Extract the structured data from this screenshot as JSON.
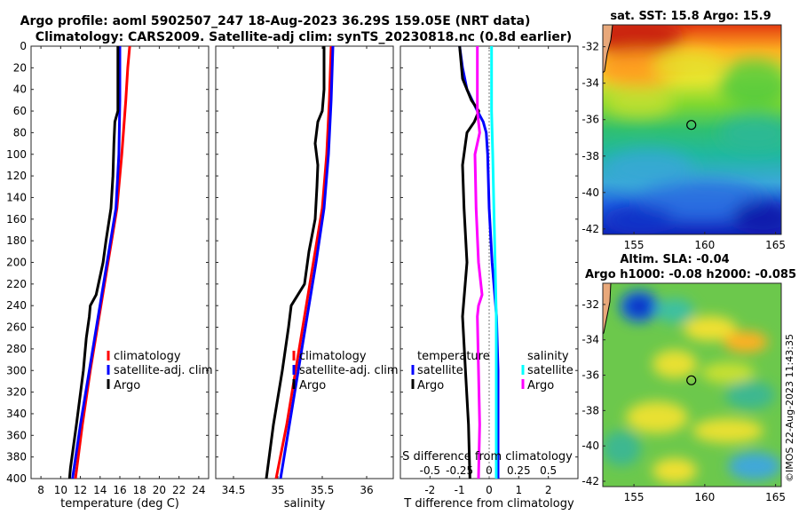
{
  "title": {
    "line1": "Argo profile: aoml 5902507_247 18-Aug-2023 36.29S 159.05E (NRT data)",
    "line2": "Climatology: CARS2009. Satellite-adj clim: synTS_20230818.nc (0.8d earlier)"
  },
  "map1_title": "sat. SST: 15.8 Argo: 15.9",
  "map2_title_line1": "Altim. SLA: -0.04",
  "map2_title_line2": "Argo h1000: -0.08 h2000: -0.085",
  "credit": "©IMOS 22-Aug-2023 11:43:35",
  "colors": {
    "climatology": "#ff0000",
    "satellite": "#0000ff",
    "argo": "#000000",
    "sal_satellite": "#00ffff",
    "sal_argo": "#ff00ff"
  },
  "chart_data": [
    {
      "type": "line",
      "name": "temperature-profile",
      "xlabel": "temperature (deg C)",
      "ylabel": "",
      "xlim": [
        7,
        25
      ],
      "ylim": [
        400,
        0
      ],
      "xticks": [
        8,
        10,
        12,
        14,
        16,
        18,
        20,
        22,
        24
      ],
      "yticks": [
        0,
        20,
        40,
        60,
        80,
        100,
        120,
        140,
        160,
        180,
        200,
        220,
        240,
        260,
        280,
        300,
        320,
        340,
        360,
        380,
        400
      ],
      "legend": [
        "climatology",
        "satellite-adj. clim",
        "Argo"
      ],
      "series": [
        {
          "name": "climatology",
          "depth": [
            0,
            20,
            50,
            100,
            150,
            200,
            250,
            300,
            350,
            400
          ],
          "values": [
            17.0,
            16.8,
            16.6,
            16.2,
            15.7,
            14.8,
            13.9,
            13.0,
            12.2,
            11.5
          ]
        },
        {
          "name": "satellite-adj. clim",
          "depth": [
            0,
            20,
            50,
            100,
            150,
            200,
            250,
            300,
            350,
            400
          ],
          "values": [
            16.0,
            16.0,
            16.0,
            15.9,
            15.6,
            14.7,
            13.8,
            12.9,
            12.0,
            11.2
          ]
        },
        {
          "name": "Argo",
          "depth": [
            0,
            30,
            60,
            70,
            90,
            120,
            150,
            180,
            200,
            230,
            240,
            250,
            270,
            300,
            350,
            390,
            400
          ],
          "values": [
            15.8,
            15.8,
            15.8,
            15.5,
            15.4,
            15.3,
            15.1,
            14.6,
            14.3,
            13.6,
            13.0,
            12.9,
            12.6,
            12.3,
            11.6,
            11.0,
            10.9
          ]
        }
      ]
    },
    {
      "type": "line",
      "name": "salinity-profile",
      "xlabel": "salinity",
      "ylabel": "",
      "xlim": [
        34.3,
        36.3
      ],
      "ylim": [
        400,
        0
      ],
      "xticks": [
        34.5,
        35,
        35.5,
        36
      ],
      "xticklabels": [
        "34.5",
        "35",
        "35.5",
        "36"
      ],
      "legend": [
        "climatology",
        "satellite-adj. clim",
        "Argo"
      ],
      "series": [
        {
          "name": "climatology",
          "depth": [
            0,
            50,
            100,
            150,
            200,
            250,
            300,
            350,
            400
          ],
          "values": [
            35.6,
            35.58,
            35.55,
            35.5,
            35.4,
            35.3,
            35.2,
            35.1,
            34.98
          ]
        },
        {
          "name": "satellite-adj. clim",
          "depth": [
            0,
            50,
            100,
            150,
            200,
            250,
            300,
            350,
            400
          ],
          "values": [
            35.62,
            35.6,
            35.57,
            35.52,
            35.43,
            35.33,
            35.23,
            35.13,
            35.03
          ]
        },
        {
          "name": "Argo",
          "depth": [
            0,
            40,
            60,
            70,
            90,
            110,
            130,
            160,
            190,
            220,
            240,
            260,
            300,
            350,
            400
          ],
          "values": [
            35.52,
            35.52,
            35.5,
            35.45,
            35.42,
            35.45,
            35.44,
            35.42,
            35.35,
            35.3,
            35.15,
            35.12,
            35.05,
            34.95,
            34.87
          ]
        }
      ]
    },
    {
      "type": "line",
      "name": "difference-profile",
      "xlabel": "T difference from climatology",
      "xlabel_top": "S difference from climatology",
      "xlim": [
        -3,
        3
      ],
      "ylim": [
        400,
        0
      ],
      "xticks": [
        -2,
        -1,
        0,
        1,
        2
      ],
      "top_xticks": [
        "-0.5",
        "-0.25",
        "0",
        "0.25",
        "0.5"
      ],
      "legend_temperature": {
        "heading": "temperature",
        "items": [
          "satellite",
          "Argo"
        ]
      },
      "legend_salinity": {
        "heading": "salinity",
        "items": [
          "satellite",
          "Argo"
        ]
      },
      "series": [
        {
          "name": "temperature satellite",
          "depth": [
            0,
            20,
            40,
            60,
            70,
            80,
            100,
            150,
            200,
            250,
            300,
            350,
            400
          ],
          "values": [
            -1.0,
            -0.9,
            -0.75,
            -0.4,
            -0.2,
            -0.1,
            -0.05,
            0.0,
            0.1,
            0.25,
            0.3,
            0.3,
            0.3
          ]
        },
        {
          "name": "temperature Argo",
          "depth": [
            0,
            30,
            50,
            60,
            70,
            80,
            90,
            110,
            150,
            200,
            250,
            300,
            350,
            400
          ],
          "values": [
            -1.0,
            -0.9,
            -0.6,
            -0.35,
            -0.5,
            -0.75,
            -0.8,
            -0.9,
            -0.85,
            -0.75,
            -0.9,
            -0.8,
            -0.7,
            -0.65
          ]
        },
        {
          "name": "salinity satellite",
          "depth": [
            0,
            60,
            100,
            150,
            200,
            250,
            300,
            350,
            400
          ],
          "values": [
            0.02,
            0.02,
            0.03,
            0.04,
            0.05,
            0.06,
            0.06,
            0.06,
            0.06
          ]
        },
        {
          "name": "salinity Argo",
          "depth": [
            0,
            60,
            80,
            100,
            150,
            200,
            230,
            240,
            250,
            300,
            350,
            400
          ],
          "values": [
            -0.1,
            -0.1,
            -0.08,
            -0.12,
            -0.11,
            -0.09,
            -0.06,
            -0.09,
            -0.1,
            -0.09,
            -0.08,
            -0.09
          ]
        }
      ]
    },
    {
      "type": "heatmap",
      "name": "sst-map",
      "title": "sat. SST: 15.8 Argo: 15.9",
      "xlim": [
        152.8,
        165.4
      ],
      "ylim": [
        -42.3,
        -30.8
      ],
      "xticks": [
        155,
        160,
        165
      ],
      "yticks": [
        -32,
        -34,
        -36,
        -38,
        -40,
        -42
      ],
      "marker": {
        "lon": 159.05,
        "lat": -36.29
      }
    },
    {
      "type": "heatmap",
      "name": "sla-map",
      "title": "Altim. SLA: -0.04",
      "xlim": [
        152.8,
        165.4
      ],
      "ylim": [
        -42.3,
        -30.8
      ],
      "xticks": [
        155,
        160,
        165
      ],
      "yticks": [
        -32,
        -34,
        -36,
        -38,
        -40,
        -42
      ],
      "marker": {
        "lon": 159.05,
        "lat": -36.29
      }
    }
  ]
}
